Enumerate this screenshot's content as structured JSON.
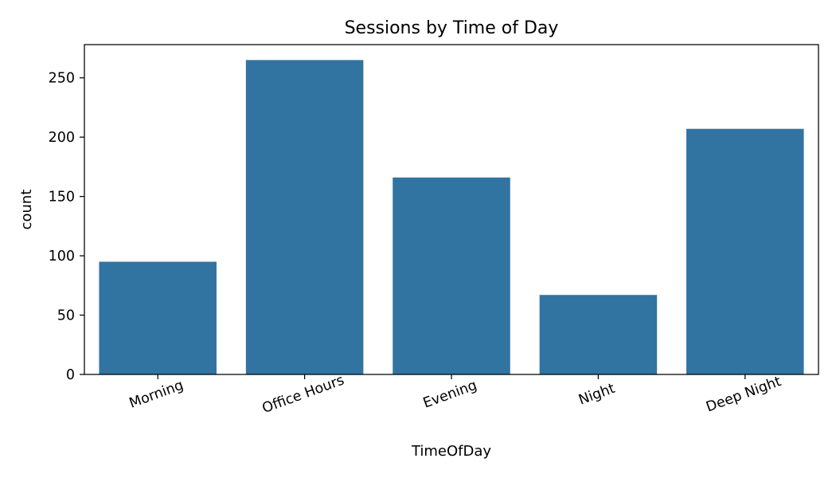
{
  "chart_data": {
    "type": "bar",
    "title": "Sessions by Time of Day",
    "xlabel": "TimeOfDay",
    "ylabel": "count",
    "categories": [
      "Morning",
      "Office Hours",
      "Evening",
      "Night",
      "Deep Night"
    ],
    "values": [
      95,
      265,
      166,
      67,
      207
    ],
    "ylim": [
      0,
      278
    ],
    "yticks": [
      0,
      50,
      100,
      150,
      200,
      250
    ],
    "grid": false,
    "bar_color": "#3274a1",
    "xtick_rotation_deg": -20
  }
}
